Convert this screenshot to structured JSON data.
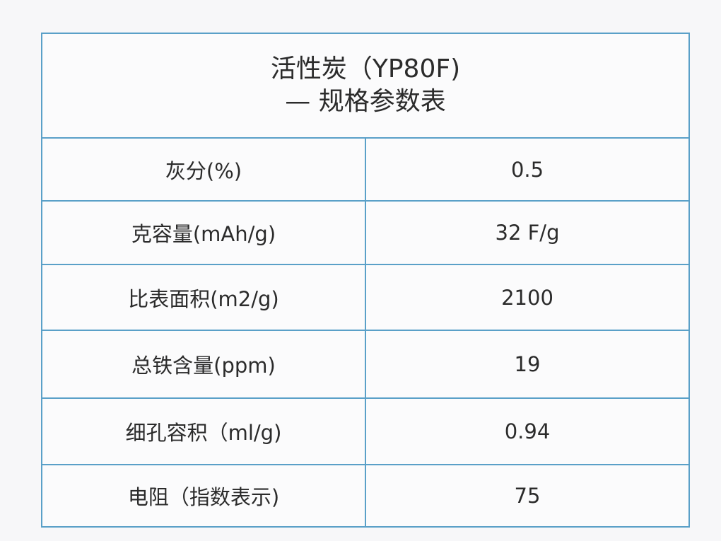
{
  "table": {
    "title_line1": "活性炭（YP80F)",
    "title_line2": "— 规格参数表",
    "border_color": "#5aa0c8",
    "rows": [
      {
        "label": "灰分(%)",
        "value": "0.5"
      },
      {
        "label": "克容量(mAh/g)",
        "value": "32 F/g"
      },
      {
        "label": "比表面积(m2/g)",
        "value": "2100"
      },
      {
        "label": "总铁含量(ppm)",
        "value": "19"
      },
      {
        "label": "细孔容积（ml/g)",
        "value": "0.94"
      },
      {
        "label": "电阻（指数表示)",
        "value": "75"
      }
    ]
  }
}
